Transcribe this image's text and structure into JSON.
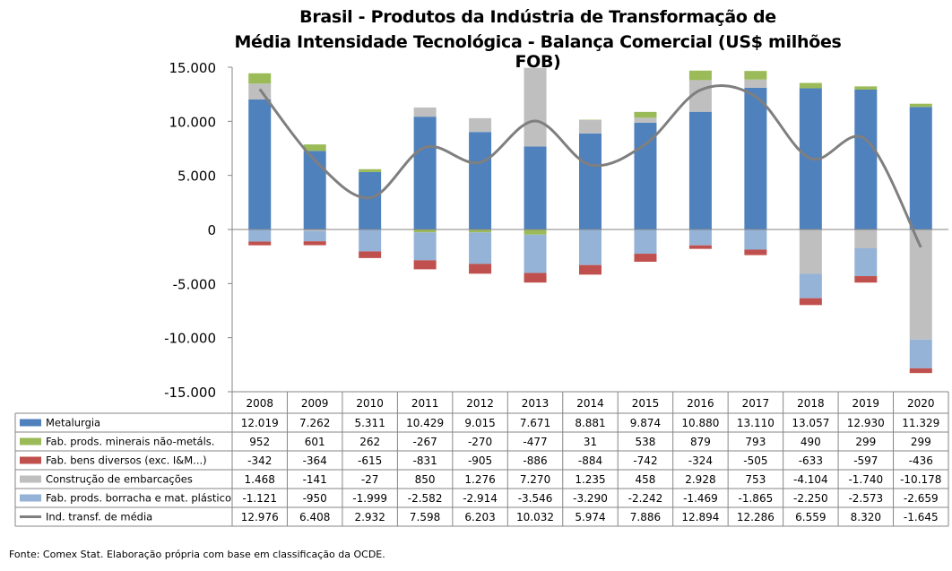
{
  "title_line1": "Brasil - Produtos da Indústria de Transformação de",
  "title_line2": "Média Intensidade Tecnológica - Balança Comercial (US$ milhões FOB)",
  "source": "Fonte: Comex Stat. Elaboração própria com base em classificação da OCDE.",
  "chart_data": {
    "type": "bar",
    "stacked": true,
    "title": "Brasil - Produtos da Indústria de Transformação de Média Intensidade Tecnológica - Balança Comercial (US$ milhões FOB)",
    "ylim": [
      -15000,
      15000
    ],
    "y_ticks": [
      15000,
      10000,
      5000,
      0,
      -5000,
      -10000,
      -15000
    ],
    "y_tick_labels": [
      "15.000",
      "10.000",
      "5.000",
      "0",
      "-5.000",
      "-10.000",
      "-15.000"
    ],
    "categories": [
      "2008",
      "2009",
      "2010",
      "2011",
      "2012",
      "2013",
      "2014",
      "2015",
      "2016",
      "2017",
      "2018",
      "2019",
      "2020"
    ],
    "series": [
      {
        "name": "Metalurgia",
        "kind": "bar",
        "color": "#4F81BD",
        "values": [
          12019,
          7262,
          5311,
          10429,
          9015,
          7671,
          8881,
          9874,
          10880,
          13110,
          13057,
          12930,
          11329
        ],
        "labels": [
          "12.019",
          "7.262",
          "5.311",
          "10.429",
          "9.015",
          "7.671",
          "8.881",
          "9.874",
          "10.880",
          "13.110",
          "13.057",
          "12.930",
          "11.329"
        ]
      },
      {
        "name": "Fab. prods. minerais não-metáls.",
        "kind": "bar",
        "color": "#9BBB59",
        "values": [
          952,
          601,
          262,
          -267,
          -270,
          -477,
          31,
          538,
          879,
          793,
          490,
          299,
          299
        ],
        "labels": [
          "952",
          "601",
          "262",
          "-267",
          "-270",
          "-477",
          "31",
          "538",
          "879",
          "793",
          "490",
          "299",
          "299"
        ]
      },
      {
        "name": "Fab. bens diversos (exc. I&M...)",
        "kind": "bar",
        "color": "#C0504D",
        "values": [
          -342,
          -364,
          -615,
          -831,
          -905,
          -886,
          -884,
          -742,
          -324,
          -505,
          -633,
          -597,
          -436
        ],
        "labels": [
          "-342",
          "-364",
          "-615",
          "-831",
          "-905",
          "-886",
          "-884",
          "-742",
          "-324",
          "-505",
          "-633",
          "-597",
          "-436"
        ]
      },
      {
        "name": "Construção de embarcações",
        "kind": "bar",
        "color": "#BFBFBF",
        "values": [
          1468,
          -141,
          -27,
          850,
          1276,
          7270,
          1235,
          458,
          2928,
          753,
          -4104,
          -1740,
          -10178
        ],
        "labels": [
          "1.468",
          "-141",
          "-27",
          "850",
          "1.276",
          "7.270",
          "1.235",
          "458",
          "2.928",
          "753",
          "-4.104",
          "-1.740",
          "-10.178"
        ]
      },
      {
        "name": "Fab. prods. borracha e mat. plástico",
        "kind": "bar",
        "color": "#95B3D7",
        "values": [
          -1121,
          -950,
          -1999,
          -2582,
          -2914,
          -3546,
          -3290,
          -2242,
          -1469,
          -1865,
          -2250,
          -2573,
          -2659
        ],
        "labels": [
          "-1.121",
          "-950",
          "-1.999",
          "-2.582",
          "-2.914",
          "-3.546",
          "-3.290",
          "-2.242",
          "-1.469",
          "-1.865",
          "-2.250",
          "-2.573",
          "-2.659"
        ]
      },
      {
        "name": "Ind. transf. de média",
        "kind": "line",
        "color": "#7F7F7F",
        "values": [
          12976,
          6408,
          2932,
          7598,
          6203,
          10032,
          5974,
          7886,
          12894,
          12286,
          6559,
          8320,
          -1645
        ],
        "labels": [
          "12.976",
          "6.408",
          "2.932",
          "7.598",
          "6.203",
          "10.032",
          "5.974",
          "7.886",
          "12.894",
          "12.286",
          "6.559",
          "8.320",
          "-1.645"
        ]
      }
    ],
    "stack_order": [
      0,
      3,
      1,
      4,
      2
    ],
    "legend": "data-table",
    "grid": false
  }
}
